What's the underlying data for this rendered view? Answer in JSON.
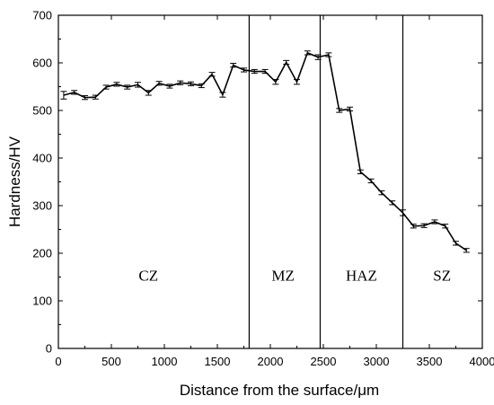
{
  "chart_data": {
    "type": "line",
    "title": "",
    "xlabel": "Distance from the surface/μm",
    "ylabel": "Hardness/HV",
    "xlim": [
      0,
      4000
    ],
    "ylim": [
      0,
      700
    ],
    "x_ticks": [
      "0",
      "500",
      "1000",
      "1500",
      "2000",
      "2500",
      "3000",
      "3500",
      "4000"
    ],
    "y_ticks": [
      "0",
      "100",
      "200",
      "300",
      "400",
      "500",
      "600",
      "700"
    ],
    "grid": false,
    "line_color": "#000000",
    "marker": "error-bar",
    "regions": [
      {
        "label": "CZ",
        "x_start": 0,
        "x_end": 1800
      },
      {
        "label": "MZ",
        "x_start": 1800,
        "x_end": 2470
      },
      {
        "label": "HAZ",
        "x_start": 2470,
        "x_end": 3250
      },
      {
        "label": "SZ",
        "x_start": 3250,
        "x_end": 4000
      }
    ],
    "boundaries": [
      1800,
      2470,
      3250
    ],
    "series": [
      {
        "x": [
          50,
          150,
          250,
          350,
          450,
          550,
          650,
          750,
          850,
          950,
          1050,
          1150,
          1250,
          1350,
          1450,
          1550,
          1650,
          1750,
          1850,
          1950,
          2050,
          2150,
          2250,
          2350,
          2450,
          2550,
          2650,
          2750,
          2850,
          2950,
          3050,
          3150,
          3250,
          3350,
          3450,
          3550,
          3650,
          3750,
          3850
        ],
        "values": [
          532,
          538,
          527,
          528,
          549,
          555,
          549,
          554,
          537,
          557,
          551,
          558,
          556,
          552,
          576,
          533,
          595,
          585,
          582,
          582,
          560,
          601,
          560,
          621,
          612,
          617,
          500,
          503,
          371,
          352,
          327,
          306,
          285,
          257,
          258,
          266,
          257,
          221,
          206
        ],
        "errors": [
          8,
          4,
          4,
          4,
          4,
          4,
          4,
          5,
          5,
          4,
          4,
          4,
          4,
          4,
          4,
          5,
          4,
          4,
          4,
          4,
          5,
          4,
          5,
          4,
          5,
          4,
          4,
          4,
          4,
          4,
          4,
          4,
          6,
          4,
          4,
          4,
          4,
          4,
          4
        ]
      }
    ]
  }
}
